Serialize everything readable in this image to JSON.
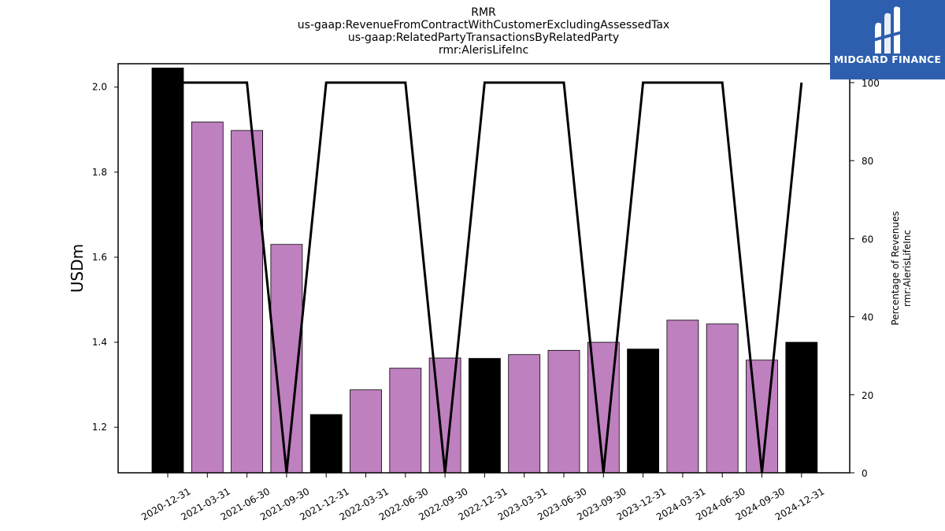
{
  "chart_data": {
    "type": "bar",
    "title_lines": [
      "RMR",
      "us-gaap:RevenueFromContractWithCustomerExcludingAssessedTax",
      "us-gaap:RelatedPartyTransactionsByRelatedParty",
      "rmr:AlerisLifeInc"
    ],
    "categories": [
      "2020-12-31",
      "2021-03-31",
      "2021-06-30",
      "2021-09-30",
      "2021-12-31",
      "2022-03-31",
      "2022-06-30",
      "2022-09-30",
      "2022-12-31",
      "2023-03-31",
      "2023-06-30",
      "2023-09-30",
      "2023-12-31",
      "2024-03-31",
      "2024-06-30",
      "2024-09-30",
      "2024-12-31"
    ],
    "values": [
      2.045,
      1.918,
      1.898,
      1.63,
      1.23,
      1.288,
      1.339,
      1.363,
      1.362,
      1.371,
      1.381,
      1.4,
      1.384,
      1.452,
      1.443,
      1.358,
      1.4
    ],
    "bar_colors": [
      "#000000",
      "#bf80bf",
      "#bf80bf",
      "#bf80bf",
      "#000000",
      "#bf80bf",
      "#bf80bf",
      "#bf80bf",
      "#000000",
      "#bf80bf",
      "#bf80bf",
      "#bf80bf",
      "#000000",
      "#bf80bf",
      "#bf80bf",
      "#bf80bf",
      "#000000"
    ],
    "ylabel": "USDm",
    "ylim": [
      1.093,
      2.055
    ],
    "yticks": [
      1.2,
      1.4,
      1.6,
      1.8,
      2.0
    ],
    "ytick_labels": [
      "1.2",
      "1.4",
      "1.6",
      "1.8",
      "2.0"
    ],
    "line_series": {
      "values": [
        100,
        100,
        100,
        0,
        100,
        100,
        100,
        0,
        100,
        100,
        100,
        0,
        100,
        100,
        100,
        0,
        100
      ],
      "color": "#000000"
    },
    "y2label_lines": [
      "Percentage of Revenues",
      "rmr:AlerisLifeInc"
    ],
    "y2lim": [
      0,
      100
    ],
    "y2ticks": [
      0,
      20,
      40,
      60,
      80,
      100
    ],
    "y2tick_labels": [
      "0",
      "20",
      "40",
      "60",
      "80",
      "100"
    ]
  },
  "logo": {
    "text": "MIDGARD FINANCE",
    "icon": "midgard-logo-icon",
    "background": "#2d5fae"
  }
}
